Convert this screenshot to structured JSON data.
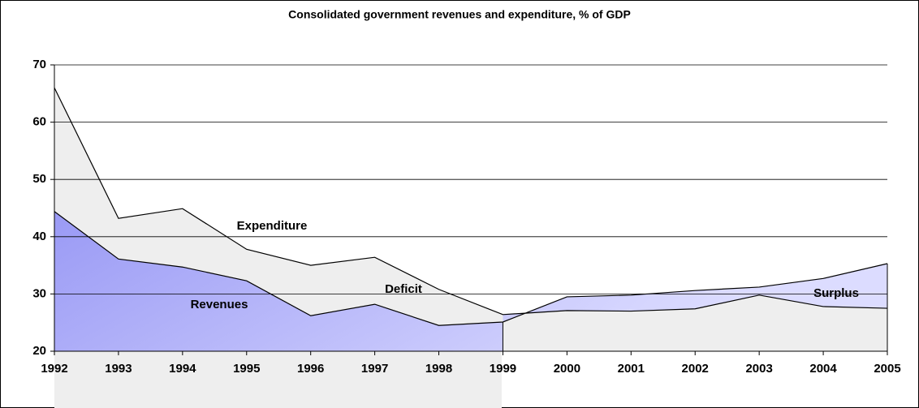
{
  "chart_data": {
    "type": "area",
    "title": "Consolidated government revenues and expenditure, % of GDP",
    "categories": [
      "1992",
      "1993",
      "1994",
      "1995",
      "1996",
      "1997",
      "1998",
      "1999",
      "2000",
      "2001",
      "2002",
      "2003",
      "2004",
      "2005"
    ],
    "series": [
      {
        "name": "Expenditure",
        "color": "#d9d9d9",
        "values": [
          66,
          43.2,
          44.9,
          37.8,
          35,
          36.4,
          30.8,
          26.4,
          27.1,
          27,
          27.4,
          29.8,
          27.8,
          27.5
        ]
      },
      {
        "name": "Revenues",
        "color": "#b3b3ff",
        "values": [
          44.4,
          36.1,
          34.7,
          32.3,
          26.2,
          28.2,
          24.5,
          25.1,
          29.5,
          29.8,
          30.6,
          31.2,
          32.7,
          35.3
        ]
      }
    ],
    "annotations": [
      "Deficit",
      "Surplus"
    ],
    "ylim": [
      20,
      70
    ],
    "yticks": [
      20,
      30,
      40,
      50,
      60,
      70
    ],
    "grid": true
  }
}
